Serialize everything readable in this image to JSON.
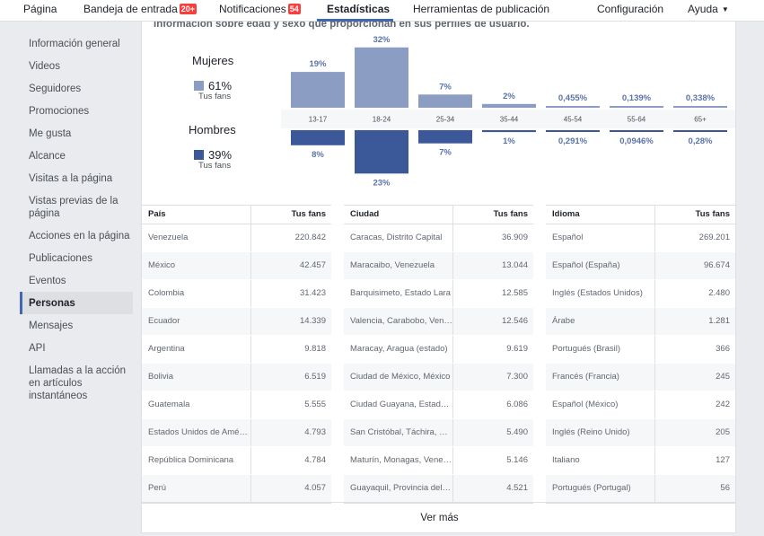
{
  "nav": {
    "pagina": "Página",
    "bandeja": "Bandeja de entrada",
    "bandeja_badge": "20+",
    "notificaciones": "Notificaciones",
    "notificaciones_badge": "54",
    "estadisticas": "Estadísticas",
    "herramientas": "Herramientas de publicación",
    "configuracion": "Configuración",
    "ayuda": "Ayuda",
    "ayuda_caret": "▼"
  },
  "sidebar": {
    "items": [
      "Información general",
      "Videos",
      "Seguidores",
      "Promociones",
      "Me gusta",
      "Alcance",
      "Visitas a la página",
      "Vistas previas de la página",
      "Acciones en la página",
      "Publicaciones",
      "Eventos",
      "Personas",
      "Mensajes",
      "API",
      "Llamadas a la acción en artículos instantáneos"
    ],
    "active_index": 11
  },
  "main": {
    "intro": "Información sobre edad y sexo que proporcionan en sus perfiles de usuario.",
    "women": {
      "label": "Mujeres",
      "pct": "61%",
      "sub": "Tus fans",
      "color": "#8b9dc3"
    },
    "men": {
      "label": "Hombres",
      "pct": "39%",
      "sub": "Tus fans",
      "color": "#3b5998"
    },
    "see_more": "Ver más"
  },
  "chart_data": {
    "type": "bar",
    "categories": [
      "13-17",
      "18-24",
      "25-34",
      "35-44",
      "45-54",
      "55-64",
      "65+"
    ],
    "series": [
      {
        "name": "Mujeres",
        "values": [
          19,
          32,
          7,
          2,
          0.455,
          0.139,
          0.338
        ],
        "labels": [
          "19%",
          "32%",
          "7%",
          "2%",
          "0,455%",
          "0,139%",
          "0,338%"
        ],
        "color": "#8b9dc3"
      },
      {
        "name": "Hombres",
        "values": [
          8,
          23,
          7,
          1,
          0.291,
          0.0946,
          0.28
        ],
        "labels": [
          "8%",
          "23%",
          "7%",
          "1%",
          "0,291%",
          "0,0946%",
          "0,28%"
        ],
        "color": "#3b5998"
      }
    ],
    "label_color": "#5b73a8"
  },
  "tables": {
    "country": {
      "headers": [
        "País",
        "Tus fans"
      ],
      "rows": [
        [
          "Venezuela",
          "220.842"
        ],
        [
          "México",
          "42.457"
        ],
        [
          "Colombia",
          "31.423"
        ],
        [
          "Ecuador",
          "14.339"
        ],
        [
          "Argentina",
          "9.818"
        ],
        [
          "Bolivia",
          "6.519"
        ],
        [
          "Guatemala",
          "5.555"
        ],
        [
          "Estados Unidos de América",
          "4.793"
        ],
        [
          "República Dominicana",
          "4.784"
        ],
        [
          "Perú",
          "4.057"
        ]
      ]
    },
    "city": {
      "headers": [
        "Ciudad",
        "Tus fans"
      ],
      "rows": [
        [
          "Caracas, Distrito Capital",
          "36.909"
        ],
        [
          "Maracaibo, Venezuela",
          "13.044"
        ],
        [
          "Barquisimeto, Estado Lara",
          "12.585"
        ],
        [
          "Valencia, Carabobo, Venezuela",
          "12.546"
        ],
        [
          "Maracay, Aragua (estado)",
          "9.619"
        ],
        [
          "Ciudad de México, México",
          "7.300"
        ],
        [
          "Ciudad Guayana, Estado Bolívar",
          "6.086"
        ],
        [
          "San Cristóbal, Táchira, Venezuela",
          "5.490"
        ],
        [
          "Maturín, Monagas, Venezuela",
          "5.146"
        ],
        [
          "Guayaquil, Provincia del Guayas",
          "4.521"
        ]
      ]
    },
    "language": {
      "headers": [
        "Idioma",
        "Tus fans"
      ],
      "rows": [
        [
          "Español",
          "269.201"
        ],
        [
          "Español (España)",
          "96.674"
        ],
        [
          "Inglés (Estados Unidos)",
          "2.480"
        ],
        [
          "Árabe",
          "1.281"
        ],
        [
          "Portugués (Brasil)",
          "366"
        ],
        [
          "Francés (Francia)",
          "245"
        ],
        [
          "Español (México)",
          "242"
        ],
        [
          "Inglés (Reino Unido)",
          "205"
        ],
        [
          "Italiano",
          "127"
        ],
        [
          "Portugués (Portugal)",
          "56"
        ]
      ]
    }
  }
}
